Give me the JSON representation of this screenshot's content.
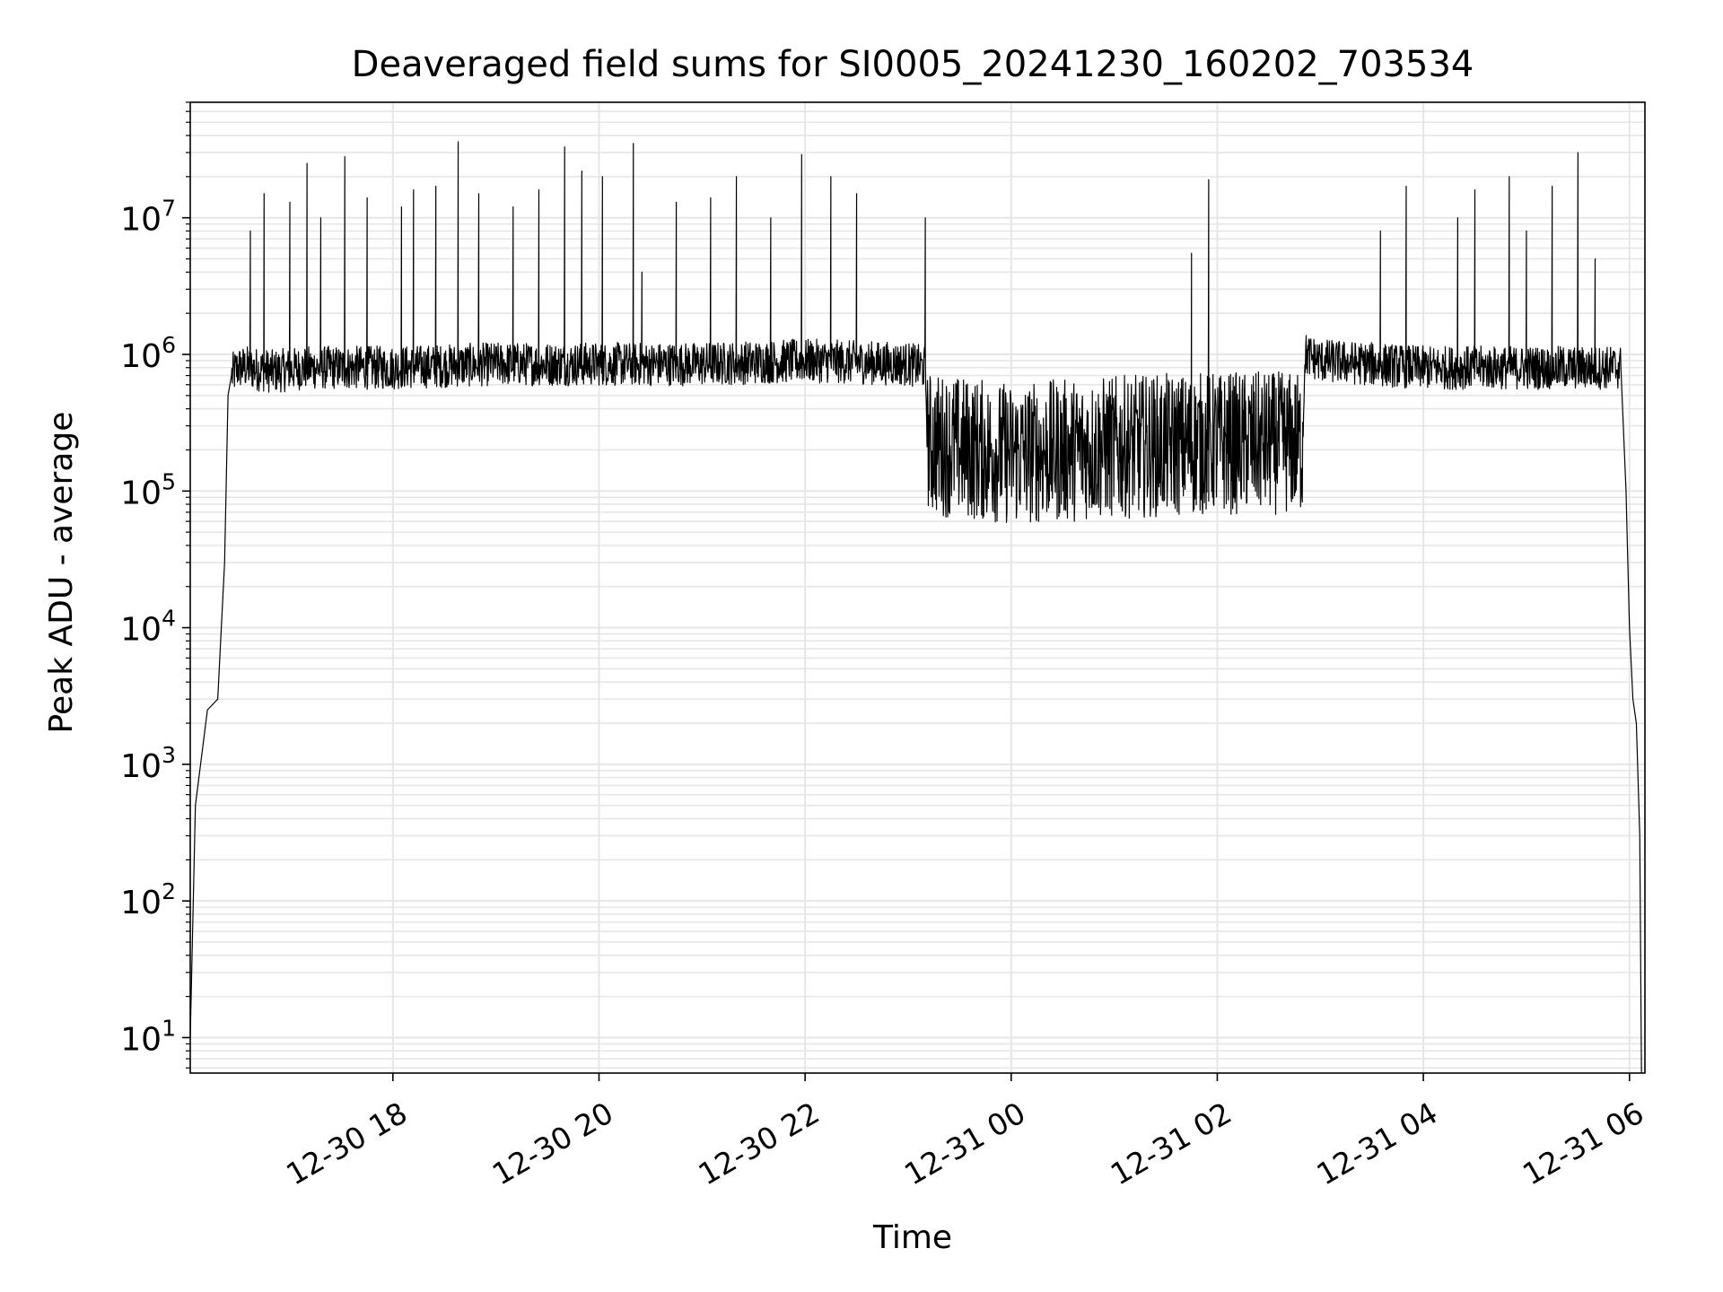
{
  "chart_data": {
    "type": "line",
    "title": "Deaveraged field sums for SI0005_20241230_160202_703534",
    "xlabel": "Time",
    "ylabel": "Peak ADU - average",
    "y_scale": "log",
    "ylim": [
      5.5,
      70000000
    ],
    "xlim": [
      "12-30 16:02",
      "12-31 06:09"
    ],
    "x_ticks": [
      "12-30 18",
      "12-30 20",
      "12-30 22",
      "12-31 00",
      "12-31 02",
      "12-31 04",
      "12-31 06"
    ],
    "y_ticks": [
      {
        "base": "10",
        "exp": "1"
      },
      {
        "base": "10",
        "exp": "2"
      },
      {
        "base": "10",
        "exp": "3"
      },
      {
        "base": "10",
        "exp": "4"
      },
      {
        "base": "10",
        "exp": "5"
      },
      {
        "base": "10",
        "exp": "6"
      },
      {
        "base": "10",
        "exp": "7"
      }
    ],
    "grid": true,
    "legend": "none",
    "line_color": "#000000",
    "grid_color": "#e6e6e6",
    "series": [
      {
        "x": [
          "12-30 16:02",
          "12-30 16:05",
          "12-30 16:12",
          "12-30 16:18",
          "12-30 16:22",
          "12-30 16:24",
          "12-30 16:26",
          "12-30 16:30",
          "12-30 16:35",
          "12-30 16:50",
          "12-30 17:10",
          "12-30 18:00",
          "12-30 19:00",
          "12-30 20:00",
          "12-30 21:00",
          "12-30 22:00",
          "12-30 23:00",
          "12-30 23:10",
          "12-30 23:11",
          "12-31 00:00",
          "12-31 01:00",
          "12-31 02:00",
          "12-31 02:50",
          "12-31 02:51",
          "12-31 03:00",
          "12-31 04:00",
          "12-31 05:00",
          "12-31 05:55",
          "12-31 05:58",
          "12-31 06:00",
          "12-31 06:02",
          "12-31 06:04",
          "12-31 06:06",
          "12-31 06:07"
        ],
        "y": [
          10,
          500,
          2500,
          3000,
          30000,
          500000,
          700000,
          800000,
          800000,
          750000,
          800000,
          800000,
          850000,
          850000,
          850000,
          900000,
          850000,
          800000,
          300000,
          250000,
          280000,
          300000,
          300000,
          1000000,
          900000,
          800000,
          800000,
          800000,
          100000,
          10000,
          3000,
          2000,
          300,
          5
        ]
      }
    ],
    "spikes": [
      {
        "x": "12-30 16:37",
        "y": 8000000
      },
      {
        "x": "12-30 16:45",
        "y": 15000000
      },
      {
        "x": "12-30 17:00",
        "y": 13000000
      },
      {
        "x": "12-30 17:10",
        "y": 25000000
      },
      {
        "x": "12-30 17:18",
        "y": 10000000
      },
      {
        "x": "12-30 17:32",
        "y": 28000000
      },
      {
        "x": "12-30 17:45",
        "y": 14000000
      },
      {
        "x": "12-30 18:05",
        "y": 12000000
      },
      {
        "x": "12-30 18:12",
        "y": 16000000
      },
      {
        "x": "12-30 18:25",
        "y": 17000000
      },
      {
        "x": "12-30 18:38",
        "y": 36000000
      },
      {
        "x": "12-30 18:50",
        "y": 15000000
      },
      {
        "x": "12-30 19:10",
        "y": 12000000
      },
      {
        "x": "12-30 19:25",
        "y": 16000000
      },
      {
        "x": "12-30 19:40",
        "y": 33000000
      },
      {
        "x": "12-30 19:50",
        "y": 22000000
      },
      {
        "x": "12-30 20:02",
        "y": 20000000
      },
      {
        "x": "12-30 20:20",
        "y": 35000000
      },
      {
        "x": "12-30 20:25",
        "y": 4000000
      },
      {
        "x": "12-30 20:45",
        "y": 13000000
      },
      {
        "x": "12-30 21:05",
        "y": 14000000
      },
      {
        "x": "12-30 21:20",
        "y": 20000000
      },
      {
        "x": "12-30 21:40",
        "y": 10000000
      },
      {
        "x": "12-30 21:58",
        "y": 29000000
      },
      {
        "x": "12-30 22:15",
        "y": 20000000
      },
      {
        "x": "12-30 22:30",
        "y": 15000000
      },
      {
        "x": "12-30 23:10",
        "y": 10000000
      },
      {
        "x": "12-31 01:45",
        "y": 5500000
      },
      {
        "x": "12-31 01:55",
        "y": 19000000
      },
      {
        "x": "12-31 03:35",
        "y": 8000000
      },
      {
        "x": "12-31 03:50",
        "y": 17000000
      },
      {
        "x": "12-31 04:20",
        "y": 10000000
      },
      {
        "x": "12-31 04:30",
        "y": 16000000
      },
      {
        "x": "12-31 04:50",
        "y": 20000000
      },
      {
        "x": "12-31 05:00",
        "y": 8000000
      },
      {
        "x": "12-31 05:15",
        "y": 17000000
      },
      {
        "x": "12-31 05:30",
        "y": 30000000
      },
      {
        "x": "12-31 05:40",
        "y": 5000000
      }
    ]
  }
}
